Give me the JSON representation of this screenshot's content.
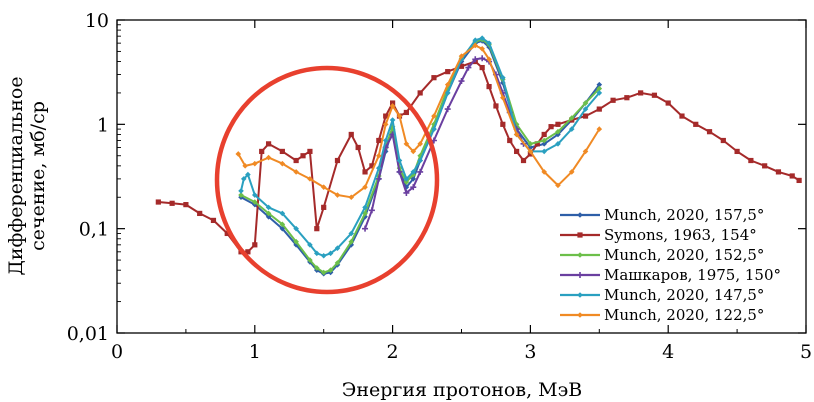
{
  "chart_data": {
    "type": "line",
    "title": "",
    "xlabel": "Энергия протонов, МэВ",
    "ylabel": [
      "Дифференциальное",
      "сечение, мб/ср"
    ],
    "xlim": [
      0,
      5
    ],
    "ylim": [
      0.01,
      10
    ],
    "y_scale": "log",
    "x_ticks": [
      0,
      1,
      2,
      3,
      4,
      5
    ],
    "x_tick_labels": [
      "0",
      "1",
      "2",
      "3",
      "4",
      "5"
    ],
    "y_ticks": [
      0.01,
      0.1,
      1,
      10
    ],
    "y_tick_labels": [
      "0,01",
      "0,1",
      "1",
      "10"
    ],
    "grid": false,
    "legend_position": "bottom-right",
    "annotation": "red circle highlighting the 0.75–2.35 MeV region",
    "series": [
      {
        "name": "Munch, 2020, 157,5°",
        "color": "#2e5fa8",
        "marker": "diamond",
        "x": [
          0.9,
          1.0,
          1.1,
          1.2,
          1.3,
          1.4,
          1.45,
          1.5,
          1.55,
          1.6,
          1.7,
          1.8,
          1.9,
          1.95,
          2.0,
          2.05,
          2.1,
          2.15,
          2.2,
          2.3,
          2.4,
          2.5,
          2.6,
          2.65,
          2.7,
          2.8,
          2.9,
          3.0,
          3.1,
          3.2,
          3.3,
          3.4,
          3.5
        ],
        "y": [
          0.2,
          0.17,
          0.13,
          0.1,
          0.07,
          0.048,
          0.04,
          0.037,
          0.038,
          0.045,
          0.07,
          0.13,
          0.3,
          0.55,
          0.9,
          0.35,
          0.25,
          0.3,
          0.45,
          0.9,
          2.0,
          4.0,
          6.0,
          6.3,
          5.5,
          2.5,
          0.9,
          0.6,
          0.65,
          0.8,
          1.1,
          1.6,
          2.4
        ]
      },
      {
        "name": "Symons, 1963, 154°",
        "color": "#a52a2a",
        "marker": "square",
        "x": [
          0.3,
          0.4,
          0.5,
          0.6,
          0.7,
          0.8,
          0.9,
          0.95,
          1.0,
          1.05,
          1.1,
          1.2,
          1.3,
          1.35,
          1.4,
          1.45,
          1.5,
          1.6,
          1.7,
          1.75,
          1.8,
          1.85,
          1.9,
          1.95,
          2.0,
          2.05,
          2.1,
          2.2,
          2.3,
          2.4,
          2.5,
          2.6,
          2.65,
          2.7,
          2.75,
          2.8,
          2.85,
          2.9,
          2.95,
          3.0,
          3.05,
          3.1,
          3.15,
          3.2,
          3.3,
          3.4,
          3.5,
          3.6,
          3.7,
          3.8,
          3.9,
          4.0,
          4.1,
          4.2,
          4.3,
          4.4,
          4.5,
          4.6,
          4.7,
          4.8,
          4.9,
          4.95
        ],
        "y": [
          0.18,
          0.175,
          0.17,
          0.14,
          0.12,
          0.09,
          0.06,
          0.06,
          0.07,
          0.55,
          0.65,
          0.55,
          0.45,
          0.5,
          0.55,
          0.1,
          0.16,
          0.45,
          0.8,
          0.6,
          0.35,
          0.4,
          0.7,
          1.2,
          1.6,
          1.2,
          1.3,
          2.0,
          2.8,
          3.2,
          3.6,
          4.0,
          3.5,
          2.3,
          1.5,
          1.0,
          0.7,
          0.55,
          0.45,
          0.52,
          0.65,
          0.8,
          0.95,
          1.0,
          1.1,
          1.2,
          1.4,
          1.7,
          1.8,
          2.0,
          1.9,
          1.6,
          1.2,
          1.0,
          0.85,
          0.7,
          0.55,
          0.45,
          0.4,
          0.35,
          0.32,
          0.29
        ]
      },
      {
        "name": "Munch, 2020, 152,5°",
        "color": "#6cbf4a",
        "marker": "diamond",
        "x": [
          0.9,
          1.0,
          1.1,
          1.2,
          1.3,
          1.4,
          1.45,
          1.5,
          1.55,
          1.6,
          1.7,
          1.8,
          1.9,
          1.95,
          2.0,
          2.05,
          2.1,
          2.15,
          2.2,
          2.3,
          2.4,
          2.5,
          2.6,
          2.65,
          2.7,
          2.8,
          2.9,
          3.0,
          3.1,
          3.2,
          3.3,
          3.4,
          3.5
        ],
        "y": [
          0.21,
          0.18,
          0.14,
          0.11,
          0.075,
          0.05,
          0.042,
          0.038,
          0.04,
          0.047,
          0.075,
          0.14,
          0.32,
          0.6,
          0.95,
          0.38,
          0.28,
          0.33,
          0.5,
          1.0,
          2.2,
          4.3,
          6.2,
          6.5,
          5.8,
          2.7,
          1.0,
          0.65,
          0.7,
          0.85,
          1.15,
          1.6,
          2.2
        ]
      },
      {
        "name": "Машкаров, 1975, 150°",
        "color": "#6a3fa0",
        "marker": "cross",
        "x": [
          1.8,
          1.85,
          1.9,
          1.95,
          2.0,
          2.05,
          2.1,
          2.15,
          2.2,
          2.3,
          2.4,
          2.5,
          2.55,
          2.6,
          2.65,
          2.7,
          2.75,
          2.8,
          2.85,
          2.9,
          2.95
        ],
        "y": [
          0.1,
          0.15,
          0.3,
          0.6,
          0.8,
          0.35,
          0.22,
          0.25,
          0.35,
          0.7,
          1.4,
          2.6,
          3.5,
          4.2,
          4.3,
          4.0,
          3.0,
          2.0,
          1.3,
          0.9,
          0.65
        ]
      },
      {
        "name": "Munch, 2020, 147,5°",
        "color": "#2aa0c0",
        "marker": "diamond",
        "x": [
          0.9,
          0.92,
          0.95,
          1.0,
          1.1,
          1.2,
          1.3,
          1.4,
          1.45,
          1.5,
          1.55,
          1.6,
          1.7,
          1.8,
          1.9,
          1.95,
          2.0,
          2.05,
          2.1,
          2.15,
          2.2,
          2.3,
          2.4,
          2.5,
          2.6,
          2.65,
          2.7,
          2.8,
          2.9,
          3.0,
          3.1,
          3.2,
          3.3,
          3.4,
          3.5
        ],
        "y": [
          0.23,
          0.3,
          0.33,
          0.21,
          0.16,
          0.14,
          0.1,
          0.07,
          0.058,
          0.055,
          0.058,
          0.065,
          0.09,
          0.16,
          0.38,
          0.7,
          1.1,
          0.45,
          0.3,
          0.35,
          0.45,
          0.9,
          2.0,
          4.2,
          6.4,
          6.7,
          6.0,
          2.8,
          0.8,
          0.55,
          0.55,
          0.65,
          0.9,
          1.4,
          2.0
        ]
      },
      {
        "name": "Munch, 2020, 122,5°",
        "color": "#f08a24",
        "marker": "diamond",
        "x": [
          0.88,
          0.93,
          1.0,
          1.1,
          1.2,
          1.3,
          1.4,
          1.5,
          1.6,
          1.7,
          1.8,
          1.9,
          1.95,
          2.0,
          2.05,
          2.1,
          2.15,
          2.2,
          2.3,
          2.4,
          2.5,
          2.6,
          2.65,
          2.7,
          2.8,
          2.9,
          3.0,
          3.1,
          3.2,
          3.3,
          3.4,
          3.5
        ],
        "y": [
          0.52,
          0.4,
          0.42,
          0.48,
          0.42,
          0.35,
          0.3,
          0.25,
          0.21,
          0.2,
          0.25,
          0.5,
          1.0,
          1.5,
          1.2,
          0.65,
          0.55,
          0.65,
          1.2,
          2.4,
          4.5,
          5.7,
          5.3,
          4.2,
          1.8,
          0.8,
          0.55,
          0.35,
          0.26,
          0.35,
          0.55,
          0.9
        ]
      }
    ]
  }
}
